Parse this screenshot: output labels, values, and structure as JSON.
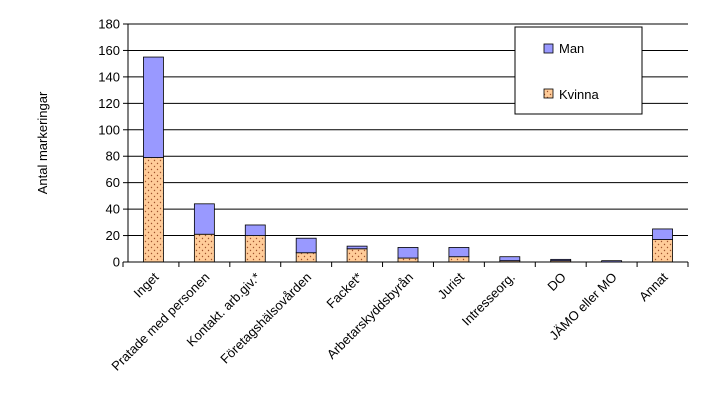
{
  "chart_data": {
    "type": "bar",
    "stacked": true,
    "title": "",
    "xlabel": "",
    "ylabel": "Antal markeringar",
    "ylim": [
      0,
      180
    ],
    "ytick_step": 20,
    "grid": true,
    "legend_position": "top-right",
    "categories": [
      "Inget",
      "Pratade med personen",
      "Kontakt. arb.giv.*",
      "Företagshälsovården",
      "Facket*",
      "Arbetarskyddsbyrån",
      "Jurist",
      "Intresseorg.",
      "DO",
      "JÄMO eller MO",
      "Annat"
    ],
    "series": [
      {
        "name": "Kvinna",
        "color": "#ffcc99",
        "pattern": "dotted",
        "values": [
          79,
          21,
          20,
          7,
          10,
          3,
          4,
          1,
          1,
          0,
          17
        ]
      },
      {
        "name": "Man",
        "color": "#9999ff",
        "pattern": "solid",
        "values": [
          76,
          23,
          8,
          11,
          2,
          8,
          7,
          3,
          1,
          1,
          8
        ]
      }
    ]
  }
}
